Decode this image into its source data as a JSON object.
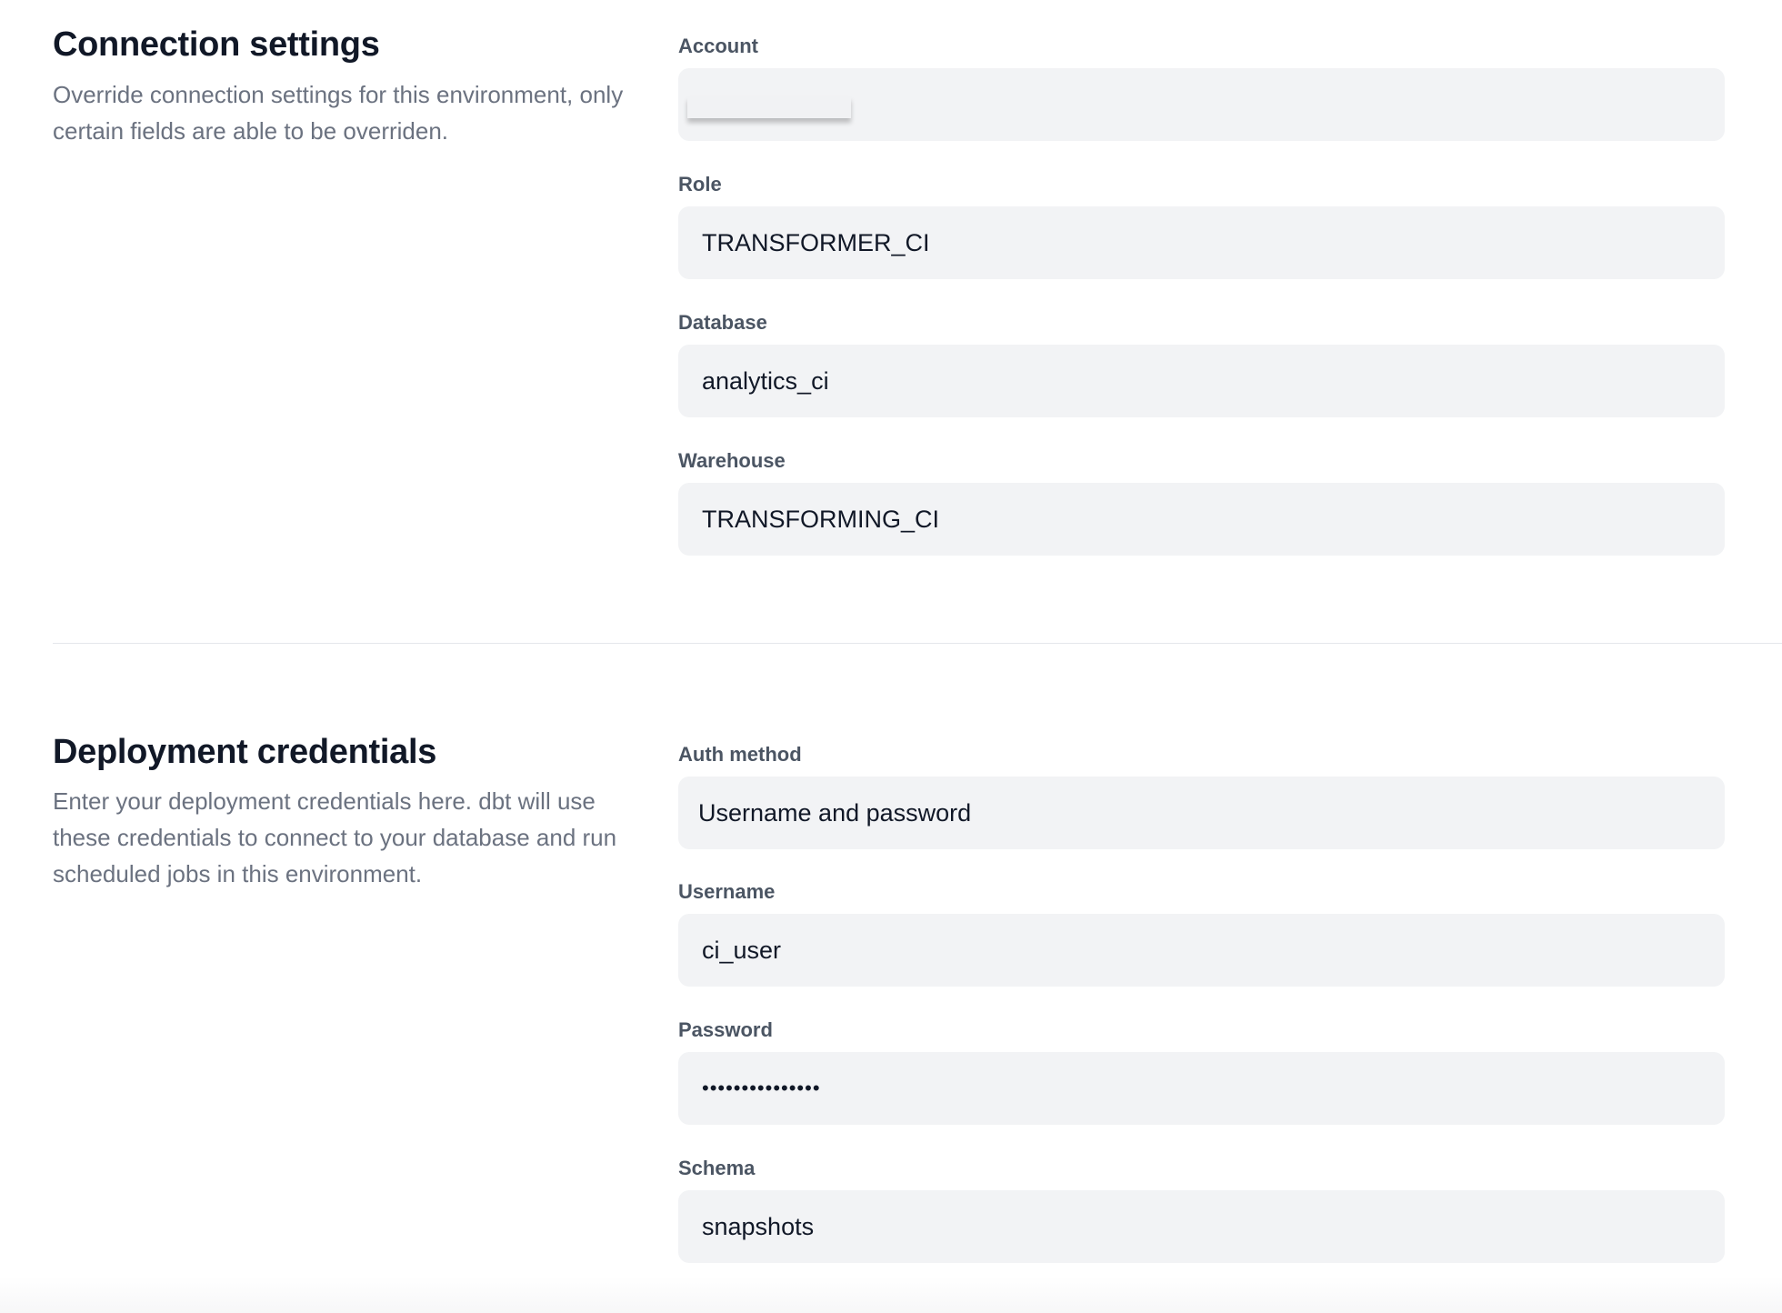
{
  "connection": {
    "title": "Connection settings",
    "description": "Override connection settings for this environment, only certain fields are able to be overriden.",
    "fields": [
      {
        "label": "Account",
        "value": ""
      },
      {
        "label": "Role",
        "value": "TRANSFORMER_CI"
      },
      {
        "label": "Database",
        "value": "analytics_ci"
      },
      {
        "label": "Warehouse",
        "value": "TRANSFORMING_CI"
      }
    ]
  },
  "credentials": {
    "title": "Deployment credentials",
    "description": "Enter your deployment credentials here. dbt will use these credentials to connect to your database and run scheduled jobs in this environment.",
    "fields": [
      {
        "label": "Auth method",
        "value": "Username and password"
      },
      {
        "label": "Username",
        "value": "ci_user"
      },
      {
        "label": "Password",
        "value": "•••••••••••••••"
      },
      {
        "label": "Schema",
        "value": "snapshots"
      }
    ]
  }
}
